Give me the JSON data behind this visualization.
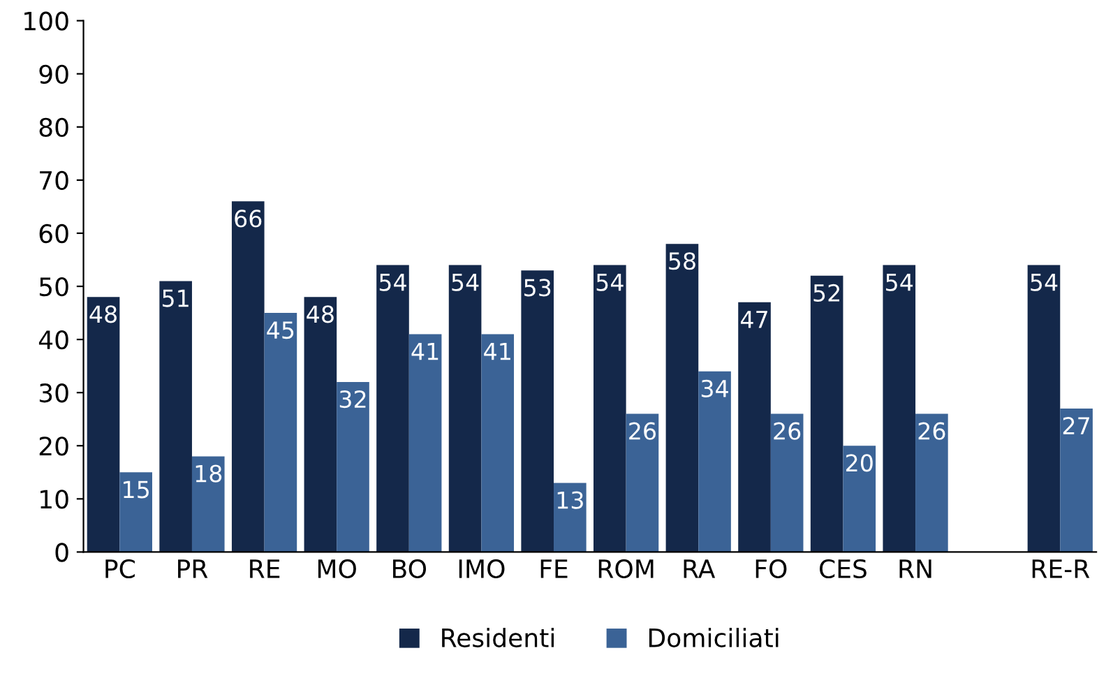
{
  "chart_data": {
    "type": "bar",
    "categories": [
      "PC",
      "PR",
      "RE",
      "MO",
      "BO",
      "IMO",
      "FE",
      "ROM",
      "RA",
      "FO",
      "CES",
      "RN",
      null,
      "RE-R"
    ],
    "series": [
      {
        "name": "Residenti",
        "color": "#14284a",
        "values": [
          48,
          51,
          66,
          48,
          54,
          54,
          53,
          54,
          58,
          47,
          52,
          54,
          null,
          54
        ]
      },
      {
        "name": "Domiciliati",
        "color": "#3b6396",
        "values": [
          15,
          18,
          45,
          32,
          41,
          41,
          13,
          26,
          34,
          26,
          20,
          26,
          null,
          27
        ]
      }
    ],
    "ylim": [
      0,
      100
    ],
    "yticks": [
      0,
      10,
      20,
      30,
      40,
      50,
      60,
      70,
      80,
      90,
      100
    ],
    "data_labels": true,
    "legend": "bottom",
    "grid": false
  }
}
